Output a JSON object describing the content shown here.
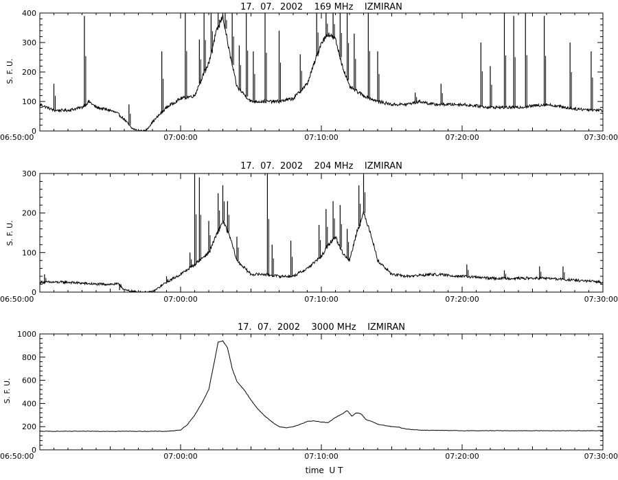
{
  "figure": {
    "background": "#ffffff",
    "line_color": "#000000"
  },
  "chart_data": [
    {
      "type": "line",
      "title": "17.  07.  2002    169 MHz    IZMIRAN",
      "ylabel": "S. F. U.",
      "xlabel": "",
      "xlim": [
        "06:50:00",
        "07:30:00"
      ],
      "ylim": [
        0,
        400
      ],
      "x_ticks": [
        "06:50:00",
        "07:00:00",
        "07:10:00",
        "07:20:00",
        "07:30:00"
      ],
      "y_ticks": [
        "0",
        "100",
        "200",
        "300",
        "400"
      ],
      "grid": false,
      "series": [
        {
          "x": [
            "06:50:00",
            "06:51:00",
            "06:52:00",
            "06:53:00",
            "06:53:30",
            "06:54:00",
            "06:55:00",
            "06:55:30",
            "06:56:00",
            "06:56:30",
            "06:57:00",
            "06:57:30",
            "06:58:00",
            "06:59:00",
            "07:00:00",
            "07:01:00",
            "07:01:30",
            "07:02:00",
            "07:02:30",
            "07:03:00",
            "07:03:30",
            "07:04:00",
            "07:05:00",
            "07:06:00",
            "07:07:00",
            "07:08:00",
            "07:09:00",
            "07:10:00",
            "07:10:30",
            "07:11:00",
            "07:11:30",
            "07:12:00",
            "07:13:00",
            "07:14:00",
            "07:15:00",
            "07:16:00",
            "07:17:00",
            "07:18:00",
            "07:20:00",
            "07:22:00",
            "07:24:00",
            "07:26:00",
            "07:28:00",
            "07:30:00"
          ],
          "y": [
            90,
            70,
            70,
            80,
            100,
            80,
            70,
            60,
            40,
            10,
            0,
            0,
            30,
            80,
            110,
            120,
            180,
            230,
            330,
            390,
            260,
            150,
            100,
            100,
            100,
            110,
            160,
            300,
            330,
            310,
            220,
            150,
            120,
            100,
            90,
            90,
            100,
            90,
            90,
            80,
            80,
            90,
            75,
            70
          ],
          "spikes": [
            {
              "t": "06:51:00",
              "v": 160
            },
            {
              "t": "06:53:10",
              "v": 390
            },
            {
              "t": "06:56:20",
              "v": 90
            },
            {
              "t": "06:58:40",
              "v": 270
            },
            {
              "t": "07:00:20",
              "v": 400
            },
            {
              "t": "07:01:20",
              "v": 310
            },
            {
              "t": "07:01:40",
              "v": 400
            },
            {
              "t": "07:02:10",
              "v": 400
            },
            {
              "t": "07:02:40",
              "v": 400
            },
            {
              "t": "07:03:10",
              "v": 400
            },
            {
              "t": "07:03:40",
              "v": 400
            },
            {
              "t": "07:04:10",
              "v": 290
            },
            {
              "t": "07:04:40",
              "v": 400
            },
            {
              "t": "07:05:10",
              "v": 270
            },
            {
              "t": "07:06:00",
              "v": 400
            },
            {
              "t": "07:07:00",
              "v": 340
            },
            {
              "t": "07:08:30",
              "v": 260
            },
            {
              "t": "07:09:40",
              "v": 400
            },
            {
              "t": "07:10:20",
              "v": 400
            },
            {
              "t": "07:10:50",
              "v": 400
            },
            {
              "t": "07:11:20",
              "v": 400
            },
            {
              "t": "07:11:50",
              "v": 400
            },
            {
              "t": "07:12:20",
              "v": 330
            },
            {
              "t": "07:13:20",
              "v": 400
            },
            {
              "t": "07:14:00",
              "v": 270
            },
            {
              "t": "07:16:40",
              "v": 130
            },
            {
              "t": "07:18:30",
              "v": 160
            },
            {
              "t": "07:21:20",
              "v": 300
            },
            {
              "t": "07:22:00",
              "v": 220
            },
            {
              "t": "07:23:00",
              "v": 400
            },
            {
              "t": "07:23:40",
              "v": 390
            },
            {
              "t": "07:24:30",
              "v": 400
            },
            {
              "t": "07:25:50",
              "v": 390
            },
            {
              "t": "07:27:40",
              "v": 300
            },
            {
              "t": "07:29:10",
              "v": 270
            }
          ]
        }
      ]
    },
    {
      "type": "line",
      "title": "17.  07.  2002    204 MHz    IZMIRAN",
      "ylabel": "S. F. U.",
      "xlabel": "",
      "xlim": [
        "06:50:00",
        "07:30:00"
      ],
      "ylim": [
        0,
        300
      ],
      "x_ticks": [
        "06:50:00",
        "07:00:00",
        "07:10:00",
        "07:20:00",
        "07:30:00"
      ],
      "y_ticks": [
        "0",
        "100",
        "200",
        "300"
      ],
      "grid": false,
      "series": [
        {
          "x": [
            "06:50:00",
            "06:52:00",
            "06:54:00",
            "06:55:00",
            "06:55:40",
            "06:56:00",
            "06:57:00",
            "06:58:00",
            "06:59:00",
            "07:00:00",
            "07:01:00",
            "07:02:00",
            "07:02:30",
            "07:03:00",
            "07:03:30",
            "07:04:00",
            "07:05:00",
            "07:06:00",
            "07:07:00",
            "07:08:00",
            "07:09:00",
            "07:10:00",
            "07:10:30",
            "07:11:00",
            "07:11:30",
            "07:12:00",
            "07:12:30",
            "07:13:00",
            "07:13:30",
            "07:14:00",
            "07:15:00",
            "07:16:00",
            "07:18:00",
            "07:20:00",
            "07:22:00",
            "07:24:00",
            "07:26:00",
            "07:28:00",
            "07:30:00"
          ],
          "y": [
            25,
            25,
            20,
            20,
            20,
            5,
            0,
            0,
            25,
            45,
            70,
            100,
            140,
            180,
            140,
            80,
            45,
            45,
            40,
            40,
            60,
            90,
            120,
            140,
            100,
            80,
            150,
            200,
            150,
            80,
            45,
            40,
            45,
            40,
            35,
            35,
            35,
            30,
            25
          ],
          "spikes": [
            {
              "t": "06:50:20",
              "v": 45
            },
            {
              "t": "06:55:40",
              "v": 5
            },
            {
              "t": "06:59:00",
              "v": 40
            },
            {
              "t": "07:00:40",
              "v": 100
            },
            {
              "t": "07:01:00",
              "v": 300
            },
            {
              "t": "07:01:20",
              "v": 290
            },
            {
              "t": "07:02:00",
              "v": 180
            },
            {
              "t": "07:02:40",
              "v": 250
            },
            {
              "t": "07:03:00",
              "v": 270
            },
            {
              "t": "07:03:20",
              "v": 230
            },
            {
              "t": "07:04:00",
              "v": 140
            },
            {
              "t": "07:06:10",
              "v": 300
            },
            {
              "t": "07:06:30",
              "v": 120
            },
            {
              "t": "07:07:50",
              "v": 130
            },
            {
              "t": "07:09:50",
              "v": 170
            },
            {
              "t": "07:10:20",
              "v": 210
            },
            {
              "t": "07:10:50",
              "v": 230
            },
            {
              "t": "07:11:20",
              "v": 220
            },
            {
              "t": "07:11:50",
              "v": 160
            },
            {
              "t": "07:12:40",
              "v": 270
            },
            {
              "t": "07:13:00",
              "v": 295
            },
            {
              "t": "07:20:20",
              "v": 70
            },
            {
              "t": "07:23:00",
              "v": 55
            },
            {
              "t": "07:25:30",
              "v": 65
            },
            {
              "t": "07:27:10",
              "v": 65
            }
          ]
        }
      ]
    },
    {
      "type": "line",
      "title": "17.  07.  2002    3000 MHz    IZMIRAN",
      "ylabel": "S. F. U.",
      "xlabel": "time  U T",
      "xlim": [
        "06:50:00",
        "07:30:00"
      ],
      "ylim": [
        0,
        1000
      ],
      "x_ticks": [
        "06:50:00",
        "07:00:00",
        "07:10:00",
        "07:20:00",
        "07:30:00"
      ],
      "y_ticks": [
        "0",
        "200",
        "400",
        "600",
        "800",
        "1000"
      ],
      "grid": false,
      "series": [
        {
          "x": [
            "06:50:00",
            "06:55:00",
            "06:59:00",
            "07:00:00",
            "07:00:30",
            "07:01:00",
            "07:01:30",
            "07:02:00",
            "07:02:20",
            "07:02:40",
            "07:03:00",
            "07:03:20",
            "07:03:40",
            "07:04:00",
            "07:04:30",
            "07:05:00",
            "07:05:30",
            "07:06:00",
            "07:06:30",
            "07:07:00",
            "07:07:30",
            "07:08:00",
            "07:08:30",
            "07:09:00",
            "07:09:30",
            "07:10:00",
            "07:10:30",
            "07:11:00",
            "07:11:30",
            "07:11:50",
            "07:12:10",
            "07:12:30",
            "07:12:50",
            "07:13:10",
            "07:13:30",
            "07:14:00",
            "07:14:30",
            "07:15:00",
            "07:15:30",
            "07:16:00",
            "07:17:00",
            "07:18:00",
            "07:20:00",
            "07:25:00",
            "07:30:00"
          ],
          "y": [
            160,
            160,
            160,
            170,
            220,
            300,
            400,
            520,
            720,
            930,
            940,
            880,
            700,
            590,
            520,
            430,
            350,
            290,
            240,
            200,
            190,
            200,
            220,
            245,
            250,
            240,
            235,
            280,
            310,
            340,
            290,
            320,
            310,
            260,
            250,
            220,
            210,
            200,
            195,
            180,
            170,
            168,
            165,
            165,
            165
          ],
          "spikes": []
        }
      ]
    }
  ]
}
